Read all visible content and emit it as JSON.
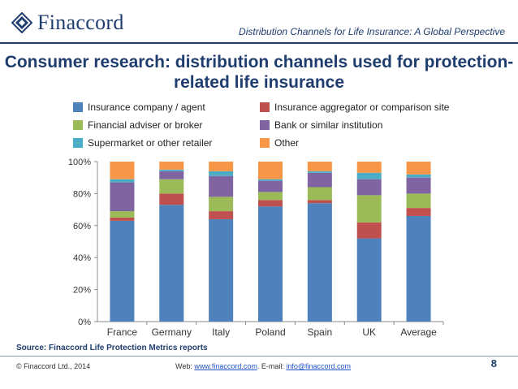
{
  "header": {
    "logo_text": "Finaccord",
    "title": "Distribution Channels for Life Insurance: A Global Perspective"
  },
  "legend": [
    {
      "label": "Insurance company / agent",
      "color": "#4f81bd"
    },
    {
      "label": "Financial adviser or broker",
      "color": "#9bbb59"
    },
    {
      "label": "Supermarket or other retailer",
      "color": "#4bacc6"
    },
    {
      "label": "Insurance aggregator or comparison site",
      "color": "#c0504d"
    },
    {
      "label": "Bank or similar institution",
      "color": "#8064a2"
    },
    {
      "label": "Other",
      "color": "#f79646"
    }
  ],
  "chart_data": {
    "type": "bar",
    "stacked": true,
    "title": "Consumer research: distribution channels used for protection-related life insurance",
    "categories": [
      "France",
      "Germany",
      "Italy",
      "Poland",
      "Spain",
      "UK",
      "Average"
    ],
    "yticks": [
      "0%",
      "20%",
      "40%",
      "60%",
      "80%",
      "100%"
    ],
    "ylim": [
      0,
      100
    ],
    "series": [
      {
        "name": "Insurance company / agent",
        "color": "#4f81bd",
        "values": [
          63,
          73,
          64,
          72,
          74,
          52,
          66
        ]
      },
      {
        "name": "Insurance aggregator or comparison site",
        "color": "#c0504d",
        "values": [
          2,
          7,
          5,
          4,
          2,
          10,
          5
        ]
      },
      {
        "name": "Financial adviser or broker",
        "color": "#9bbb59",
        "values": [
          4,
          9,
          9,
          5,
          8,
          17,
          9
        ]
      },
      {
        "name": "Bank or similar institution",
        "color": "#8064a2",
        "values": [
          18,
          5,
          13,
          7,
          9,
          10,
          10
        ]
      },
      {
        "name": "Supermarket or other retailer",
        "color": "#4bacc6",
        "values": [
          2,
          1,
          3,
          1,
          1,
          4,
          2
        ]
      },
      {
        "name": "Other",
        "color": "#f79646",
        "values": [
          11,
          5,
          6,
          11,
          6,
          7,
          8
        ]
      }
    ],
    "legend_position": "top",
    "grid": false
  },
  "source": "Source: Finaccord Life Protection Metrics reports",
  "footer": {
    "copyright": "© Finaccord Ltd., 2014",
    "web_label": "Web: ",
    "web_link": "www.finaccord.com",
    "email_label": ". E-mail: ",
    "email_link": "info@finaccord.com",
    "page_number": "8"
  }
}
